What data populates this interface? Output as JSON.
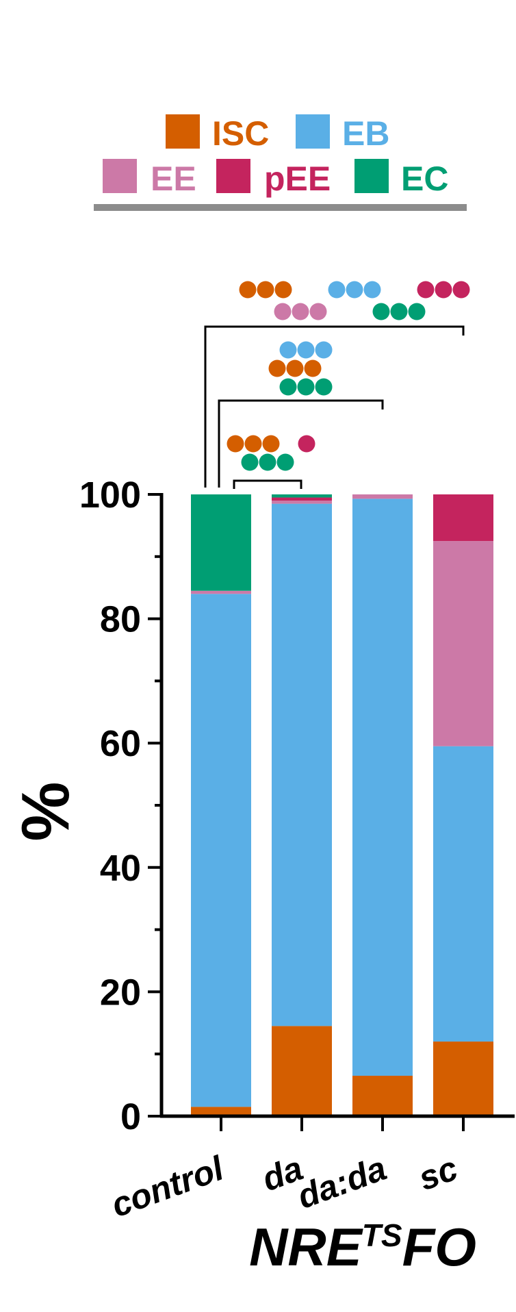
{
  "chart_data": {
    "type": "bar",
    "stacked": true,
    "categories": [
      "control",
      "da",
      "da:da",
      "sc"
    ],
    "ylabel": "%",
    "xlabel": {
      "main": "NRE",
      "superscript": "TS",
      "suffix": "FO"
    },
    "ylim": [
      0,
      100
    ],
    "yticks": [
      "0",
      "20",
      "40",
      "60",
      "80",
      "100"
    ],
    "series": [
      {
        "name": "ISC",
        "color": "#D45E00",
        "values": [
          1.5,
          14.5,
          6.5,
          12
        ]
      },
      {
        "name": "EB",
        "color": "#5AAFE6",
        "values": [
          82.5,
          84,
          92.8,
          47.5
        ]
      },
      {
        "name": "EE",
        "color": "#CC79A7",
        "values": [
          0.5,
          0.5,
          0.7,
          33
        ]
      },
      {
        "name": "pEE",
        "color": "#C4245E",
        "values": [
          0,
          0.5,
          0,
          7.5
        ]
      },
      {
        "name": "EC",
        "color": "#009E73",
        "values": [
          15.5,
          0.5,
          0,
          0
        ]
      }
    ],
    "legend": {
      "placement": "top",
      "rows": [
        [
          "ISC",
          "EB"
        ],
        [
          "EE",
          "pEE",
          "EC"
        ]
      ]
    },
    "significance": [
      {
        "from": "control",
        "to": "da",
        "markers": [
          {
            "series": "ISC",
            "count": 3
          },
          {
            "series": "pEE",
            "count": 1
          },
          {
            "series": "EC",
            "count": 3
          }
        ]
      },
      {
        "from": "control",
        "to": "da:da",
        "markers": [
          {
            "series": "EB",
            "count": 3
          },
          {
            "series": "ISC",
            "count": 3
          },
          {
            "series": "EC",
            "count": 3
          }
        ]
      },
      {
        "from": "control",
        "to": "sc",
        "markers": [
          {
            "series": "ISC",
            "count": 3
          },
          {
            "series": "EB",
            "count": 3
          },
          {
            "series": "pEE",
            "count": 3
          },
          {
            "series": "EE",
            "count": 3
          },
          {
            "series": "EC",
            "count": 3
          }
        ]
      }
    ]
  }
}
